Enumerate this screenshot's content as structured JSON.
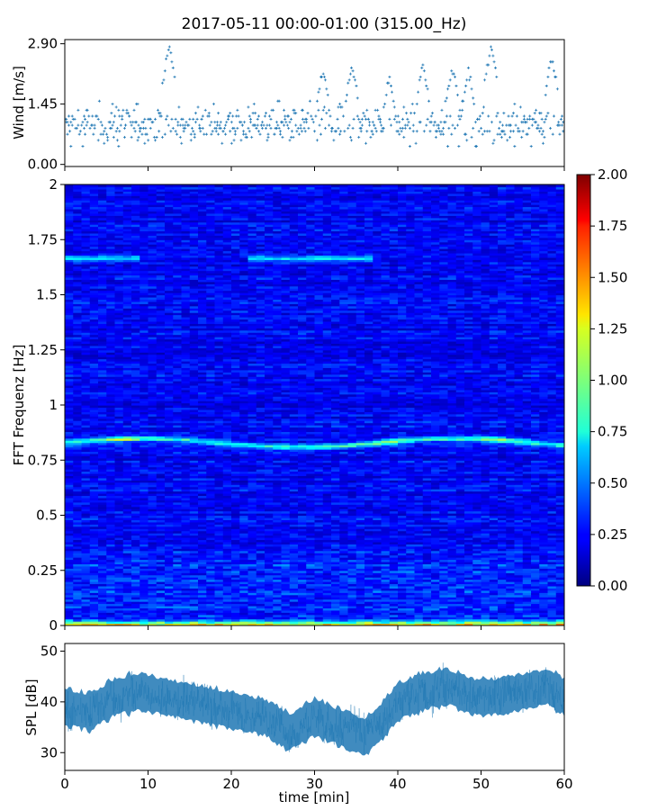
{
  "title": "2017-05-11 00:00-01:00 (315.00_Hz)",
  "colors": {
    "series": "#1f77b4",
    "colormap": "jet"
  },
  "chart_data": [
    {
      "type": "scatter",
      "name": "wind",
      "ylabel": "Wind [m/s]",
      "xlim": [
        0,
        60
      ],
      "ylim": [
        0,
        2.9
      ],
      "yticks": [
        "0.00",
        "1.45",
        "2.90"
      ],
      "marker": "+",
      "description_of_data": "wind speed samples, mostly 0.3–1.5 m/s with spikes up to 2.9 m/s near 12, 51 and 58 min",
      "peaks": [
        [
          12.5,
          2.9
        ],
        [
          31.0,
          2.3
        ],
        [
          34.5,
          2.4
        ],
        [
          39.0,
          2.2
        ],
        [
          43.0,
          2.4
        ],
        [
          46.5,
          2.4
        ],
        [
          48.5,
          2.3
        ],
        [
          51.2,
          2.85
        ],
        [
          58.5,
          2.6
        ]
      ],
      "baseline_mean": 0.95
    },
    {
      "type": "heatmap",
      "name": "spectrogram",
      "ylabel": "FFT Frequenz [Hz]",
      "xlim": [
        0,
        60
      ],
      "ylim": [
        0,
        2
      ],
      "yticks": [
        "0",
        "0.25",
        "0.5",
        "0.75",
        "1",
        "1.25",
        "1.5",
        "1.75",
        "2"
      ],
      "colorbar": {
        "min": 0,
        "max": 2,
        "ticks": [
          "0.00",
          "0.25",
          "0.50",
          "0.75",
          "1.00",
          "1.25",
          "1.50",
          "1.75",
          "2.00"
        ]
      },
      "bands": [
        {
          "freq": 0.83,
          "strength": 0.75,
          "note": "persistent band 0.8–0.86 Hz, strongest near 7 min and 39 min"
        },
        {
          "freq": 1.65,
          "strength": 0.45,
          "note": "weak band near 1.65–1.7 Hz, visible 0–8 and 22–36 min"
        },
        {
          "freq": 0.02,
          "strength": 0.9,
          "note": "low-frequency energy near 0 Hz with peaks up to ~1.8"
        }
      ]
    },
    {
      "type": "line",
      "name": "spl",
      "ylabel": "SPL [dB]",
      "xlabel": "time [min]",
      "xlim": [
        0,
        60
      ],
      "ylim": [
        26.5,
        51.5
      ],
      "yticks": [
        "30",
        "40",
        "50"
      ],
      "xticks": [
        "0",
        "10",
        "20",
        "30",
        "40",
        "50",
        "60"
      ],
      "envelope_min": [
        [
          0,
          34
        ],
        [
          5,
          36
        ],
        [
          10,
          35
        ],
        [
          15,
          34
        ],
        [
          20,
          35
        ],
        [
          25,
          31
        ],
        [
          28,
          29
        ],
        [
          32,
          31
        ],
        [
          36,
          29
        ],
        [
          40,
          32
        ],
        [
          45,
          35
        ],
        [
          50,
          36
        ],
        [
          55,
          35
        ],
        [
          60,
          35
        ]
      ],
      "envelope_mean": [
        [
          0,
          39
        ],
        [
          3,
          38
        ],
        [
          6,
          41
        ],
        [
          9,
          42
        ],
        [
          12,
          41
        ],
        [
          15,
          40
        ],
        [
          18,
          39
        ],
        [
          21,
          38
        ],
        [
          24,
          37
        ],
        [
          27,
          34
        ],
        [
          30,
          37
        ],
        [
          33,
          35
        ],
        [
          36,
          33
        ],
        [
          38,
          36
        ],
        [
          40,
          40
        ],
        [
          43,
          42
        ],
        [
          46,
          43
        ],
        [
          49,
          41
        ],
        [
          52,
          41
        ],
        [
          55,
          42
        ],
        [
          58,
          43
        ],
        [
          60,
          41
        ]
      ],
      "envelope_max": [
        [
          0,
          45
        ],
        [
          5,
          46
        ],
        [
          10,
          47
        ],
        [
          15,
          46
        ],
        [
          20,
          44
        ],
        [
          25,
          42
        ],
        [
          30,
          42
        ],
        [
          35,
          41
        ],
        [
          38,
          42
        ],
        [
          42,
          46
        ],
        [
          46,
          48
        ],
        [
          50,
          47
        ],
        [
          55,
          48
        ],
        [
          58,
          49
        ],
        [
          60,
          47
        ]
      ]
    }
  ]
}
